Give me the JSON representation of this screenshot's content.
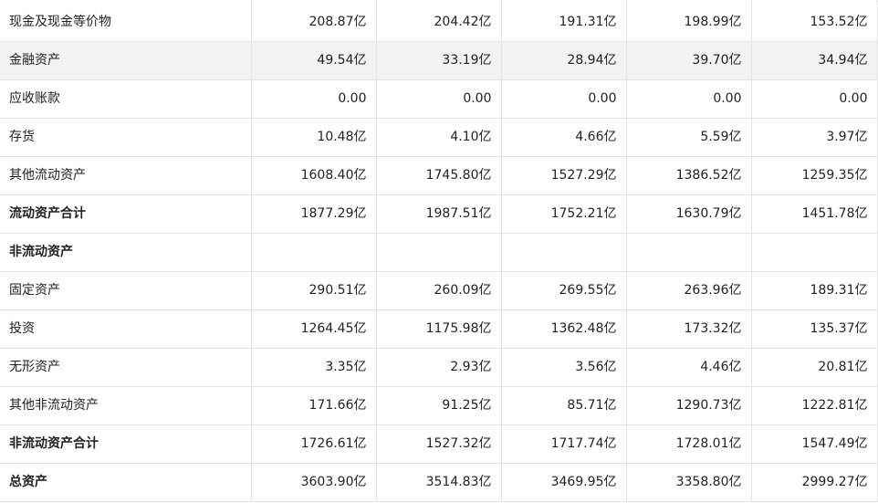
{
  "table": {
    "rows": [
      {
        "label": "现金及现金等价物",
        "values": [
          "208.87亿",
          "204.42亿",
          "191.31亿",
          "198.99亿",
          "153.52亿"
        ],
        "bold": false,
        "highlight": false
      },
      {
        "label": "金融资产",
        "values": [
          "49.54亿",
          "33.19亿",
          "28.94亿",
          "39.70亿",
          "34.94亿"
        ],
        "bold": false,
        "highlight": true
      },
      {
        "label": "应收账款",
        "values": [
          "0.00",
          "0.00",
          "0.00",
          "0.00",
          "0.00"
        ],
        "bold": false,
        "highlight": false
      },
      {
        "label": "存货",
        "values": [
          "10.48亿",
          "4.10亿",
          "4.66亿",
          "5.59亿",
          "3.97亿"
        ],
        "bold": false,
        "highlight": false
      },
      {
        "label": "其他流动资产",
        "values": [
          "1608.40亿",
          "1745.80亿",
          "1527.29亿",
          "1386.52亿",
          "1259.35亿"
        ],
        "bold": false,
        "highlight": false
      },
      {
        "label": "流动资产合计",
        "values": [
          "1877.29亿",
          "1987.51亿",
          "1752.21亿",
          "1630.79亿",
          "1451.78亿"
        ],
        "bold": true,
        "highlight": false
      },
      {
        "label": "非流动资产",
        "values": [
          "",
          "",
          "",
          "",
          ""
        ],
        "bold": true,
        "highlight": false
      },
      {
        "label": "固定资产",
        "values": [
          "290.51亿",
          "260.09亿",
          "269.55亿",
          "263.96亿",
          "189.31亿"
        ],
        "bold": false,
        "highlight": false
      },
      {
        "label": "投资",
        "values": [
          "1264.45亿",
          "1175.98亿",
          "1362.48亿",
          "173.32亿",
          "135.37亿"
        ],
        "bold": false,
        "highlight": false
      },
      {
        "label": "无形资产",
        "values": [
          "3.35亿",
          "2.93亿",
          "3.56亿",
          "4.46亿",
          "20.81亿"
        ],
        "bold": false,
        "highlight": false
      },
      {
        "label": "其他非流动资产",
        "values": [
          "171.66亿",
          "91.25亿",
          "85.71亿",
          "1290.73亿",
          "1222.81亿"
        ],
        "bold": false,
        "highlight": false
      },
      {
        "label": "非流动资产合计",
        "values": [
          "1726.61亿",
          "1527.32亿",
          "1717.74亿",
          "1728.01亿",
          "1547.49亿"
        ],
        "bold": true,
        "highlight": false
      },
      {
        "label": "总资产",
        "values": [
          "3603.90亿",
          "3514.83亿",
          "3469.95亿",
          "3358.80亿",
          "2999.27亿"
        ],
        "bold": true,
        "highlight": false
      }
    ]
  }
}
